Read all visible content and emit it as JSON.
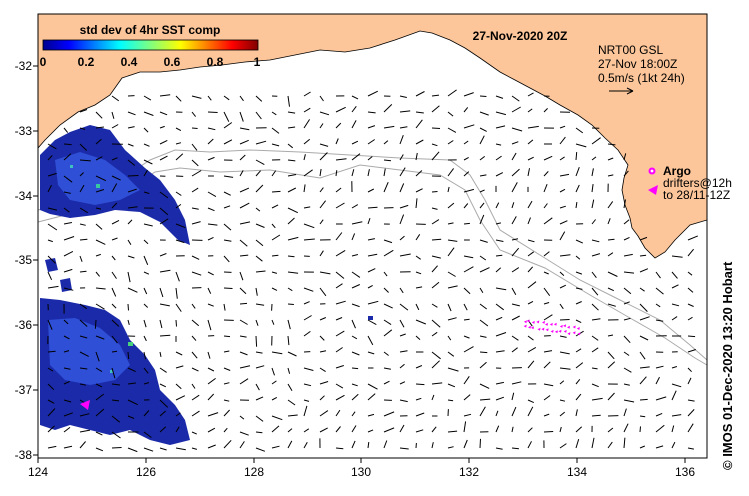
{
  "map": {
    "date_title": "27-Nov-2020 20Z",
    "colorbar": {
      "title": "std dev of 4hr SST comp",
      "ticks": [
        "0",
        "0.2",
        "0.4",
        "0.6",
        "0.8",
        "1"
      ]
    },
    "legend": {
      "product": "NRT00 GSL",
      "time": "27-Nov 18:00Z",
      "scale": "0.5m/s (1kt 24h)",
      "argo_label": "Argo",
      "drifters_line1": "drifters@12h",
      "drifters_line2": "to 28/11-12Z"
    },
    "x_ticks": [
      "124",
      "126",
      "128",
      "130",
      "132",
      "134",
      "136"
    ],
    "y_ticks": [
      "-32",
      "-33",
      "-34",
      "-35",
      "-36",
      "-37",
      "-38"
    ],
    "credit": "© IMOS 01-Dec-2020 13:20 Hobart",
    "colors": {
      "land": "#fcc69a",
      "argo": "#ff00ff",
      "drifter": "#ff00ff",
      "shelf_contour": "#aaaaaa"
    }
  }
}
